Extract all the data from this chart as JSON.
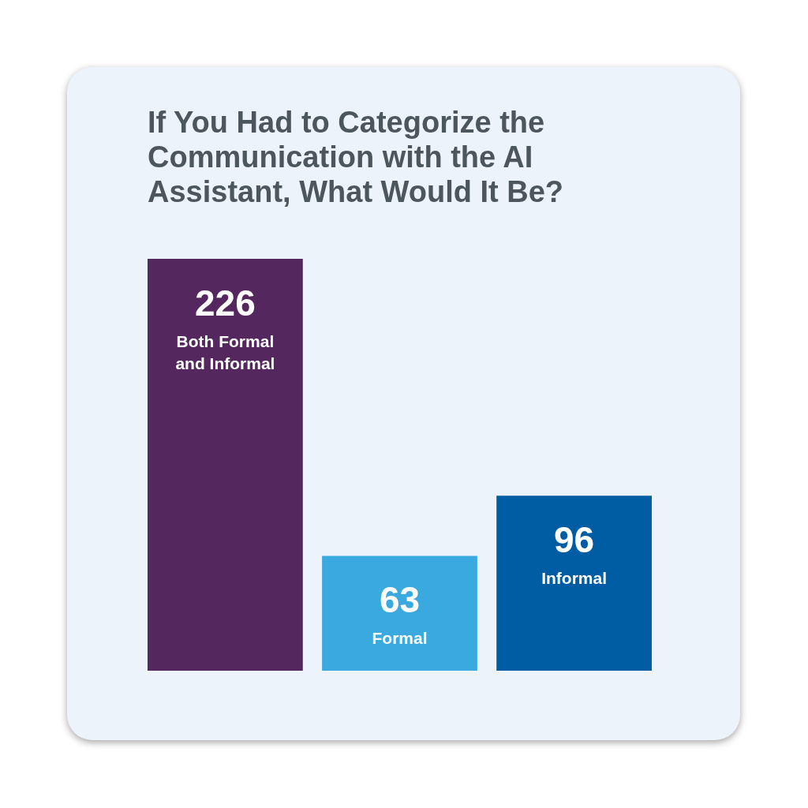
{
  "chart_data": {
    "type": "bar",
    "title": "If You Had to Categorize the Communication with the AI Assistant, What Would It Be?",
    "categories": [
      "Both Formal and Informal",
      "Formal",
      "Informal"
    ],
    "values": [
      226,
      63,
      96
    ],
    "colors": [
      "#55275f",
      "#3aa9e0",
      "#005da3"
    ],
    "data_labels": true,
    "tick_labels": false
  }
}
